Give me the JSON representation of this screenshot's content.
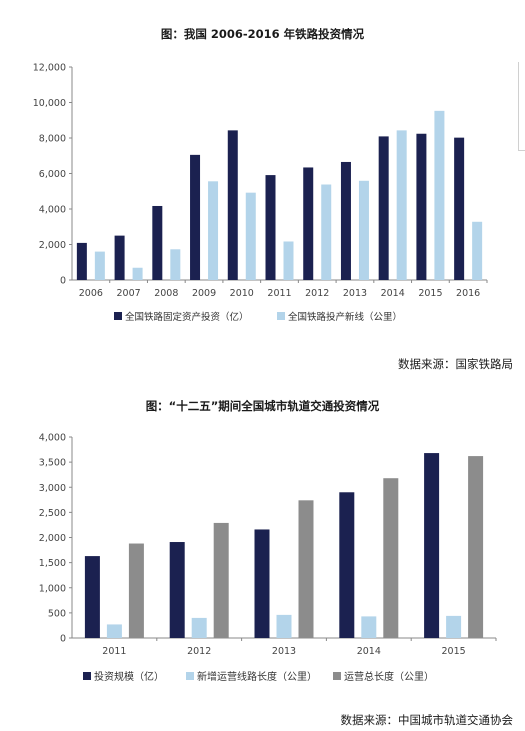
{
  "chart_data": [
    {
      "type": "bar",
      "title": "图：我国 2006-2016 年铁路投资情况",
      "categories": [
        "2006",
        "2007",
        "2008",
        "2009",
        "2010",
        "2011",
        "2012",
        "2013",
        "2014",
        "2015",
        "2016"
      ],
      "series": [
        {
          "name": "全国铁路固定资产投资（亿）",
          "color": "#1b2150",
          "values": [
            2090,
            2500,
            4170,
            7050,
            8430,
            5910,
            6340,
            6650,
            8090,
            8240,
            8020
          ]
        },
        {
          "name": "全国铁路投产新线（公里）",
          "color": "#b3d4ea",
          "values": [
            1600,
            690,
            1730,
            5560,
            4920,
            2170,
            5380,
            5590,
            8430,
            9530,
            3280
          ]
        }
      ],
      "yticks": [
        "0",
        "2,000",
        "4,000",
        "6,000",
        "8,000",
        "10,000",
        "12,000"
      ],
      "ylim": [
        0,
        12000
      ],
      "legend_position": "bottom",
      "source": "数据来源：国家铁路局"
    },
    {
      "type": "bar",
      "title": "图：“十二五”期间全国城市轨道交通投资情况",
      "categories": [
        "2011",
        "2012",
        "2013",
        "2014",
        "2015"
      ],
      "series": [
        {
          "name": "投资规模（亿）",
          "color": "#1b2150",
          "values": [
            1630,
            1910,
            2160,
            2900,
            3680
          ]
        },
        {
          "name": "新增运营线路长度（公里）",
          "color": "#b3d4ea",
          "values": [
            270,
            400,
            460,
            430,
            440
          ]
        },
        {
          "name": "运营总长度（公里）",
          "color": "#8c8c8c",
          "values": [
            1880,
            2290,
            2740,
            3180,
            3620
          ]
        }
      ],
      "yticks": [
        "0",
        "500",
        "1,000",
        "1,500",
        "2,000",
        "2,500",
        "3,000",
        "3,500",
        "4,000"
      ],
      "ylim": [
        0,
        4000
      ],
      "legend_position": "bottom",
      "source": "数据来源：中国城市轨道交通协会"
    }
  ]
}
